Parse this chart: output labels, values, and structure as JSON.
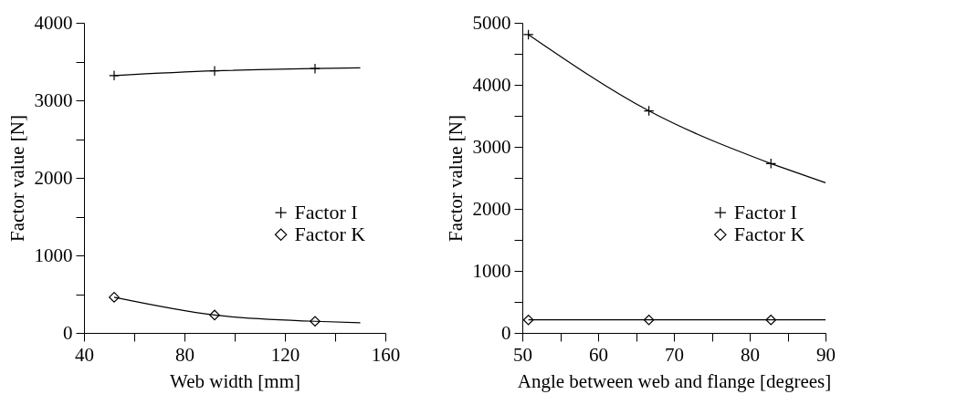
{
  "chart_data": [
    {
      "type": "line",
      "xlabel": "Web width [mm]",
      "ylabel": "Factor value [N]",
      "xlim": [
        40,
        160
      ],
      "ylim": [
        0,
        4000
      ],
      "xticks": [
        40,
        {
          "value": 60,
          "label": null
        },
        80,
        {
          "value": 100,
          "label": null
        },
        120,
        {
          "value": 140,
          "label": null
        },
        160
      ],
      "yticks": [
        0,
        {
          "value": 500,
          "label": null
        },
        1000,
        {
          "value": 1500,
          "label": null
        },
        2000,
        {
          "value": 2500,
          "label": null
        },
        3000,
        {
          "value": 3500,
          "label": null
        },
        4000
      ],
      "legend": "bottom right",
      "grid": false,
      "series": [
        {
          "name": "Factor I",
          "marker": "cross",
          "color": "#000000",
          "x": [
            52,
            92,
            132
          ],
          "values": [
            3320,
            3380,
            3410
          ]
        },
        {
          "name": "Factor K",
          "marker": "diamond",
          "color": "#000000",
          "x": [
            52,
            92,
            132
          ],
          "values": [
            460,
            230,
            150
          ]
        },
        {
          "marker": "none",
          "color": "#000000",
          "x": [
            132,
            150
          ],
          "values": [
            3410,
            3420
          ]
        },
        {
          "marker": "none",
          "color": "#000000",
          "x": [
            132,
            150
          ],
          "values": [
            150,
            130
          ]
        }
      ]
    },
    {
      "type": "line",
      "xlabel": "Angle between web and flange [degrees]",
      "ylabel": "Factor value [N]",
      "xlim": [
        50,
        90
      ],
      "ylim": [
        0,
        5000
      ],
      "xticks": [
        50,
        {
          "value": 55,
          "label": null
        },
        60,
        {
          "value": 65,
          "label": null
        },
        70,
        {
          "value": 75,
          "label": null
        },
        80,
        {
          "value": 85,
          "label": null
        },
        90
      ],
      "yticks": [
        0,
        {
          "value": 500,
          "label": null
        },
        1000,
        {
          "value": 1500,
          "label": null
        },
        2000,
        {
          "value": 2500,
          "label": null
        },
        3000,
        {
          "value": 3500,
          "label": null
        },
        4000,
        {
          "value": 4500,
          "label": null
        },
        5000
      ],
      "legend": "bottom right",
      "grid": false,
      "series": [
        {
          "name": "Factor I",
          "marker": "cross",
          "color": "#000000",
          "x": [
            50.8,
            66.7,
            82.8
          ],
          "values": [
            4810,
            3580,
            2730
          ]
        },
        {
          "name": "Factor K",
          "marker": "diamond",
          "color": "#000000",
          "x": [
            50.8,
            66.7,
            82.8
          ],
          "values": [
            210,
            210,
            210
          ]
        },
        {
          "marker": "none",
          "color": "#000000",
          "x": [
            82.8,
            90
          ],
          "values": [
            2730,
            2420
          ]
        },
        {
          "marker": "none",
          "color": "#000000",
          "x": [
            82.8,
            90
          ],
          "values": [
            210,
            210
          ]
        }
      ]
    }
  ]
}
